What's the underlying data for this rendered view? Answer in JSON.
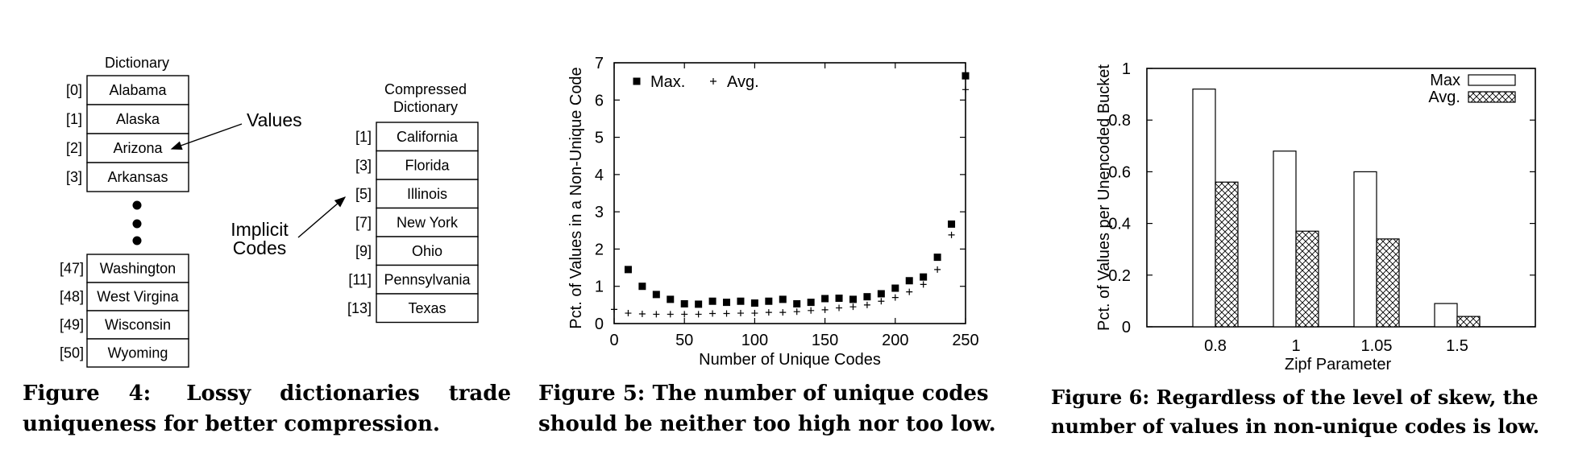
{
  "figure4": {
    "dictionary_title": "Dictionary",
    "dictionary_top": [
      {
        "code": "[0]",
        "value": "Alabama"
      },
      {
        "code": "[1]",
        "value": "Alaska"
      },
      {
        "code": "[2]",
        "value": "Arizona"
      },
      {
        "code": "[3]",
        "value": "Arkansas"
      }
    ],
    "dictionary_bottom": [
      {
        "code": "[47]",
        "value": "Washington"
      },
      {
        "code": "[48]",
        "value": "West Virgina"
      },
      {
        "code": "[49]",
        "value": "Wisconsin"
      },
      {
        "code": "[50]",
        "value": "Wyoming"
      }
    ],
    "values_label": "Values",
    "implicit_label_1": "Implicit",
    "implicit_label_2": "Codes",
    "compressed_title_1": "Compressed",
    "compressed_title_2": "Dictionary",
    "compressed": [
      {
        "code": "[1]",
        "value": "California"
      },
      {
        "code": "[3]",
        "value": "Florida"
      },
      {
        "code": "[5]",
        "value": "Illinois"
      },
      {
        "code": "[7]",
        "value": "New York"
      },
      {
        "code": "[9]",
        "value": "Ohio"
      },
      {
        "code": "[11]",
        "value": "Pennsylvania"
      },
      {
        "code": "[13]",
        "value": "Texas"
      }
    ],
    "caption_lead": "Figure 4:",
    "caption_text": "Lossy dictionaries trade uniqueness for better compression."
  },
  "figure5": {
    "caption": "Figure 5: The number of unique codes should be neither too high nor too low."
  },
  "figure6": {
    "caption": "Figure 6: Regardless of the level of skew, the number of values in non-unique codes is low."
  },
  "chart_data": [
    {
      "type": "scatter",
      "title": "",
      "xlabel": "Number of Unique Codes",
      "ylabel": "Pct. of Values in a Non-Unique Code",
      "xlim": [
        0,
        250
      ],
      "ylim": [
        0,
        7
      ],
      "xticks": [
        "0",
        "50",
        "100",
        "150",
        "200",
        "250"
      ],
      "yticks": [
        "0",
        "1",
        "2",
        "3",
        "4",
        "5",
        "6",
        "7"
      ],
      "legend_position": "top-left",
      "series": [
        {
          "name": "Max.",
          "marker": "square",
          "x": [
            10,
            20,
            30,
            40,
            50,
            60,
            70,
            80,
            90,
            100,
            110,
            120,
            130,
            140,
            150,
            160,
            170,
            180,
            190,
            200,
            210,
            220,
            230,
            240,
            250
          ],
          "y": [
            1.45,
            1.0,
            0.78,
            0.65,
            0.53,
            0.52,
            0.6,
            0.57,
            0.6,
            0.55,
            0.6,
            0.65,
            0.53,
            0.57,
            0.67,
            0.68,
            0.65,
            0.72,
            0.8,
            0.95,
            1.15,
            1.25,
            1.78,
            2.67,
            6.65
          ]
        },
        {
          "name": "Avg.",
          "marker": "plus",
          "x": [
            0,
            10,
            20,
            30,
            40,
            50,
            60,
            70,
            80,
            90,
            100,
            110,
            120,
            130,
            140,
            150,
            160,
            170,
            180,
            190,
            200,
            210,
            220,
            230,
            240,
            250
          ],
          "y": [
            0.38,
            0.28,
            0.26,
            0.25,
            0.25,
            0.25,
            0.25,
            0.27,
            0.27,
            0.28,
            0.28,
            0.3,
            0.3,
            0.32,
            0.35,
            0.37,
            0.42,
            0.45,
            0.5,
            0.6,
            0.7,
            0.85,
            1.05,
            1.45,
            2.38,
            6.28
          ]
        }
      ]
    },
    {
      "type": "bar",
      "title": "",
      "xlabel": "Zipf Parameter",
      "ylabel": "Pct. of Values per Unencoded Bucket",
      "categories": [
        "0.8",
        "1",
        "1.05",
        "1.5"
      ],
      "ylim": [
        0,
        1
      ],
      "yticks": [
        "0",
        "0.2",
        "0.4",
        "0.6",
        "0.8",
        "1"
      ],
      "legend_position": "top-right",
      "series": [
        {
          "name": "Max",
          "fill": "white",
          "values": [
            0.92,
            0.68,
            0.6,
            0.09
          ]
        },
        {
          "name": "Avg.",
          "fill": "crosshatch",
          "values": [
            0.56,
            0.37,
            0.34,
            0.04
          ]
        }
      ]
    }
  ]
}
